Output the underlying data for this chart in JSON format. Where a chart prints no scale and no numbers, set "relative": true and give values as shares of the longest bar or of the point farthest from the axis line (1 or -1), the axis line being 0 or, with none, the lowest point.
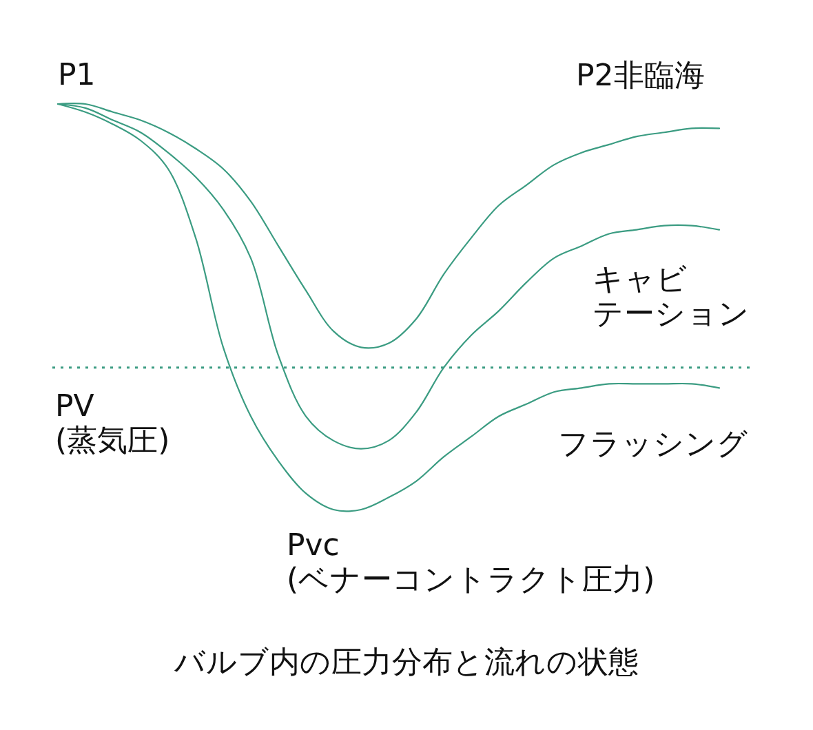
{
  "chart_data": {
    "type": "line",
    "relative": true,
    "title": "バルブ内の圧力分布と流れの状態",
    "categories": [
      null,
      null,
      null,
      null,
      null,
      null,
      null,
      null,
      null,
      null,
      null,
      null,
      null,
      null,
      null,
      null,
      null,
      null,
      null,
      null,
      null,
      null,
      null,
      null,
      null
    ],
    "series": [
      {
        "name": "P2非臨海",
        "color": "#3b9c82",
        "values": [
          1.0,
          1.0,
          0.98,
          0.96,
          0.93,
          0.89,
          0.84,
          0.76,
          0.65,
          0.54,
          0.44,
          0.4,
          0.41,
          0.47,
          0.58,
          0.67,
          0.75,
          0.8,
          0.85,
          0.88,
          0.9,
          0.92,
          0.93,
          0.94,
          0.94
        ]
      },
      {
        "name": "キャビテーション",
        "color": "#3b9c82",
        "values": [
          1.0,
          0.99,
          0.96,
          0.93,
          0.88,
          0.82,
          0.74,
          0.62,
          0.38,
          0.23,
          0.17,
          0.15,
          0.17,
          0.24,
          0.35,
          0.43,
          0.49,
          0.56,
          0.62,
          0.65,
          0.68,
          0.69,
          0.7,
          0.7,
          0.69
        ]
      },
      {
        "name": "フラッシング",
        "color": "#3b9c82",
        "values": [
          1.0,
          0.98,
          0.95,
          0.91,
          0.84,
          0.67,
          0.4,
          0.23,
          0.12,
          0.04,
          0,
          0,
          0.03,
          0.07,
          0.13,
          0.18,
          0.23,
          0.26,
          0.29,
          0.3,
          0.31,
          0.31,
          0.31,
          0.31,
          0.3
        ]
      }
    ],
    "ref_lines": [
      {
        "axis": "y",
        "value": 0.35,
        "label": "PV\n(蒸気圧)",
        "line_style": "dotted",
        "color": "#3b9c82"
      }
    ],
    "annotations": [
      {
        "text": "P1",
        "y": 1.0
      },
      "Pvc\n(ベナーコントラクト圧力)"
    ]
  }
}
